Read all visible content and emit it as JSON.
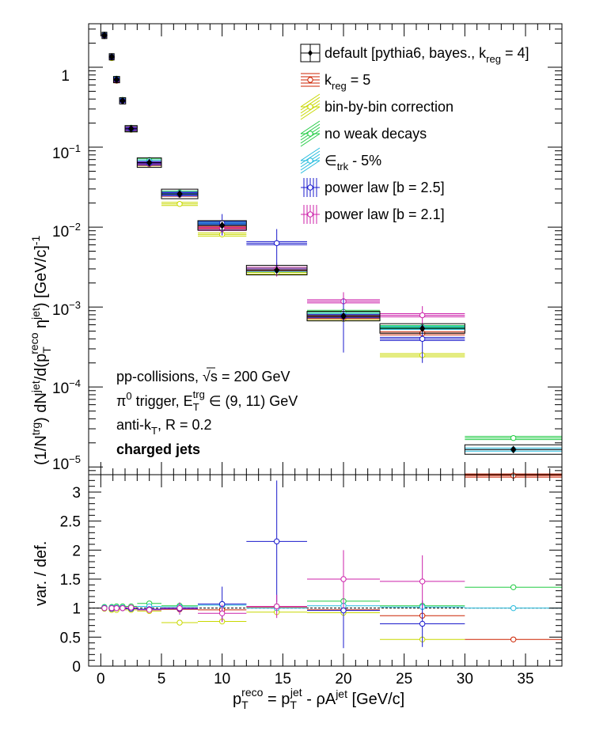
{
  "chart_data": [
    {
      "type": "scatter",
      "panel": "spectrum",
      "ylabel_parts": {
        "a": "(1/N",
        "b": "trg",
        "c": ") dN",
        "d": "jet",
        "e": "/d(p",
        "f": "T",
        "g": "reco",
        "h": " η",
        "i": "jet",
        "j": ") [GeV/c]",
        "k": "-1"
      },
      "yscale": "log",
      "ylim": [
        8e-06,
        3.5
      ],
      "xlim": [
        -1,
        38
      ],
      "y_tick_labels": {
        "t0": "1",
        "t1a": "10",
        "t1b": "−1",
        "t2a": "10",
        "t2b": "−2",
        "t3a": "10",
        "t3b": "−3",
        "t4a": "10",
        "t4b": "−4",
        "t5a": "10",
        "t5b": "−5"
      },
      "annotations": {
        "l1a": "pp-collisions, ",
        "l1b": "√s",
        "l1c": " = 200 GeV",
        "l2a": "π",
        "l2b": "0",
        "l2c": " trigger, E",
        "l2d": "T",
        "l2e": "trg",
        "l2f": " ∈ (9, 11) GeV",
        "l3a": "anti-k",
        "l3b": "T",
        "l3c": ", R = 0.2",
        "l4": "charged jets"
      },
      "legend": {
        "placement": "top-right",
        "entries": [
          {
            "a": "default [pythia6, bayes., k",
            "b": "reg",
            "c": " = 4]"
          },
          {
            "a": "k",
            "b": "reg",
            "c": " = 5"
          },
          {
            "a": "bin-by-bin correction"
          },
          {
            "a": "no weak decays"
          },
          {
            "a": "∈",
            "b": "trk",
            "c": " - 5%"
          },
          {
            "a": "power law [b = 2.5]"
          },
          {
            "a": "power law [b = 2.1]"
          }
        ]
      },
      "series": [
        {
          "name": "default",
          "color": "#000000",
          "marker": "diamond",
          "values": [
            [
              0.3,
              2.5
            ],
            [
              0.9,
              1.35
            ],
            [
              1.3,
              0.7
            ],
            [
              1.8,
              0.38
            ],
            [
              2.5,
              0.17
            ],
            [
              4,
              0.064
            ],
            [
              6.5,
              0.026
            ],
            [
              10,
              0.0105
            ],
            [
              14.5,
              0.0029
            ],
            [
              20,
              0.00077
            ],
            [
              26.5,
              0.00054
            ],
            [
              34,
              1.65e-05
            ]
          ],
          "xerr": [
            0.2,
            0.2,
            0.25,
            0.25,
            0.5,
            1,
            1.5,
            2,
            2.5,
            3,
            3.5,
            4
          ]
        },
        {
          "name": "k_reg = 5",
          "color": "#cc2200",
          "marker": "circle",
          "values": [
            [
              0.3,
              2.5
            ],
            [
              0.9,
              1.33
            ],
            [
              1.3,
              0.68
            ],
            [
              1.8,
              0.38
            ],
            [
              2.5,
              0.168
            ],
            [
              4,
              0.062
            ],
            [
              6.5,
              0.0255
            ],
            [
              10,
              0.0102
            ],
            [
              14.5,
              0.0029
            ],
            [
              20,
              0.00075
            ],
            [
              26.5,
              0.00047
            ],
            [
              34,
              7.8e-06
            ]
          ]
        },
        {
          "name": "bin-by-bin correction",
          "color": "#c8d800",
          "marker": "circle",
          "values": [
            [
              0.3,
              2.48
            ],
            [
              0.9,
              1.3
            ],
            [
              1.3,
              0.68
            ],
            [
              1.8,
              0.38
            ],
            [
              2.5,
              0.165
            ],
            [
              4,
              0.061
            ],
            [
              6.5,
              0.0195
            ],
            [
              10,
              0.0081
            ],
            [
              14.5,
              0.0027
            ],
            [
              20,
              0.00071
            ],
            [
              26.5,
              0.00025
            ]
          ]
        },
        {
          "name": "no weak decays",
          "color": "#22cc44",
          "marker": "circle",
          "values": [
            [
              0.3,
              2.55
            ],
            [
              0.9,
              1.37
            ],
            [
              1.3,
              0.72
            ],
            [
              1.8,
              0.39
            ],
            [
              2.5,
              0.175
            ],
            [
              4,
              0.069
            ],
            [
              6.5,
              0.027
            ],
            [
              10,
              0.0112
            ],
            [
              14.5,
              0.003
            ],
            [
              20,
              0.00087
            ],
            [
              26.5,
              0.00056
            ],
            [
              34,
              2.3e-05
            ]
          ]
        },
        {
          "name": "∈_trk - 5%",
          "color": "#22bbdd",
          "marker": "circle",
          "values": [
            [
              0.3,
              2.52
            ],
            [
              0.9,
              1.36
            ],
            [
              1.3,
              0.71
            ],
            [
              1.8,
              0.385
            ],
            [
              2.5,
              0.172
            ],
            [
              4,
              0.066
            ],
            [
              6.5,
              0.0265
            ],
            [
              10,
              0.011
            ],
            [
              14.5,
              0.0029
            ],
            [
              20,
              0.0008
            ],
            [
              26.5,
              0.00055
            ],
            [
              34,
              1.65e-05
            ]
          ]
        },
        {
          "name": "power law [b = 2.5]",
          "color": "#1a1acc",
          "marker": "circle",
          "values": [
            [
              0.3,
              2.5
            ],
            [
              0.9,
              1.34
            ],
            [
              1.3,
              0.7
            ],
            [
              1.8,
              0.38
            ],
            [
              2.5,
              0.168
            ],
            [
              4,
              0.063
            ],
            [
              6.5,
              0.0258
            ],
            [
              10,
              0.0112
            ],
            [
              14.5,
              0.0063
            ],
            [
              20,
              0.00077
            ],
            [
              26.5,
              0.0004
            ]
          ],
          "yerr_frac": [
            0.02,
            0.02,
            0.02,
            0.03,
            0.03,
            0.05,
            0.1,
            0.3,
            0.5,
            0.65,
            0.5
          ]
        },
        {
          "name": "power law [b = 2.1]",
          "color": "#cc22aa",
          "marker": "circle",
          "values": [
            [
              0.3,
              2.5
            ],
            [
              0.9,
              1.35
            ],
            [
              1.3,
              0.7
            ],
            [
              1.8,
              0.38
            ],
            [
              2.5,
              0.172
            ],
            [
              4,
              0.062
            ],
            [
              6.5,
              0.026
            ],
            [
              10,
              0.0095
            ],
            [
              14.5,
              0.003
            ],
            [
              20,
              0.00118
            ],
            [
              26.5,
              0.00079
            ]
          ],
          "yerr_frac": [
            0.02,
            0.02,
            0.02,
            0.03,
            0.03,
            0.05,
            0.1,
            0.15,
            0.2,
            0.3,
            0.3
          ]
        }
      ]
    },
    {
      "type": "scatter",
      "panel": "ratio",
      "ylabel": "var. / def.",
      "xlabel_parts": {
        "a": "p",
        "b": "T",
        "c": "reco",
        "d": " = p",
        "e": "T",
        "f": "jet",
        "g": " - ρA",
        "h": "jet",
        "i": " [GeV/c]"
      },
      "ylim": [
        0,
        3.3
      ],
      "xlim": [
        -1,
        38
      ],
      "x_ticks": [
        "0",
        "5",
        "10",
        "15",
        "20",
        "25",
        "30",
        "35"
      ],
      "y_ticks": [
        "0",
        "0.5",
        "1",
        "1.5",
        "2",
        "2.5",
        "3"
      ],
      "reference_line": 1,
      "series": [
        {
          "name": "k_reg = 5",
          "color": "#cc2200",
          "values": [
            [
              0.3,
              1.0
            ],
            [
              0.9,
              0.99
            ],
            [
              1.3,
              0.98
            ],
            [
              1.8,
              1.0
            ],
            [
              2.5,
              0.99
            ],
            [
              4,
              0.97
            ],
            [
              6.5,
              0.98
            ],
            [
              10,
              0.97
            ],
            [
              14.5,
              1.01
            ],
            [
              20,
              0.97
            ],
            [
              26.5,
              0.87
            ],
            [
              34,
              0.46
            ]
          ]
        },
        {
          "name": "bin-by-bin correction",
          "color": "#c8d800",
          "values": [
            [
              0.3,
              0.99
            ],
            [
              0.9,
              0.97
            ],
            [
              1.3,
              0.97
            ],
            [
              1.8,
              1.0
            ],
            [
              2.5,
              0.97
            ],
            [
              4,
              0.95
            ],
            [
              6.5,
              0.75
            ],
            [
              10,
              0.77
            ],
            [
              14.5,
              0.93
            ],
            [
              20,
              0.92
            ],
            [
              26.5,
              0.46
            ]
          ]
        },
        {
          "name": "no weak decays",
          "color": "#22cc44",
          "values": [
            [
              0.3,
              1.02
            ],
            [
              0.9,
              1.02
            ],
            [
              1.3,
              1.03
            ],
            [
              1.8,
              1.03
            ],
            [
              2.5,
              1.03
            ],
            [
              4,
              1.08
            ],
            [
              6.5,
              1.04
            ],
            [
              10,
              1.07
            ],
            [
              14.5,
              1.03
            ],
            [
              20,
              1.12
            ],
            [
              26.5,
              1.04
            ],
            [
              34,
              1.36
            ]
          ]
        },
        {
          "name": "∈_trk - 5%",
          "color": "#22bbdd",
          "values": [
            [
              0.3,
              1.01
            ],
            [
              0.9,
              1.01
            ],
            [
              1.3,
              1.01
            ],
            [
              1.8,
              1.01
            ],
            [
              2.5,
              1.01
            ],
            [
              4,
              1.03
            ],
            [
              6.5,
              1.02
            ],
            [
              10,
              1.05
            ],
            [
              14.5,
              1.0
            ],
            [
              20,
              1.04
            ],
            [
              26.5,
              1.02
            ],
            [
              34,
              1.0
            ]
          ]
        },
        {
          "name": "power law [b = 2.5]",
          "color": "#1a1acc",
          "values": [
            [
              0.3,
              1.0
            ],
            [
              0.9,
              0.99
            ],
            [
              1.3,
              1.0
            ],
            [
              1.8,
              1.0
            ],
            [
              2.5,
              0.99
            ],
            [
              4,
              0.98
            ],
            [
              6.5,
              0.99
            ],
            [
              10,
              1.07
            ],
            [
              14.5,
              2.15
            ],
            [
              20,
              0.96
            ],
            [
              26.5,
              0.73
            ]
          ],
          "yerr": [
            0.03,
            0.03,
            0.03,
            0.03,
            0.04,
            0.05,
            0.1,
            0.3,
            1.05,
            0.65,
            0.4
          ]
        },
        {
          "name": "power law [b = 2.1]",
          "color": "#cc22aa",
          "values": [
            [
              0.3,
              1.0
            ],
            [
              0.9,
              1.0
            ],
            [
              1.3,
              1.0
            ],
            [
              1.8,
              1.0
            ],
            [
              2.5,
              1.01
            ],
            [
              4,
              0.97
            ],
            [
              6.5,
              1.0
            ],
            [
              10,
              0.91
            ],
            [
              14.5,
              1.03
            ],
            [
              20,
              1.5
            ],
            [
              26.5,
              1.46
            ]
          ],
          "yerr": [
            0.03,
            0.03,
            0.03,
            0.03,
            0.04,
            0.05,
            0.1,
            0.15,
            0.2,
            0.5,
            0.45
          ]
        }
      ]
    }
  ]
}
